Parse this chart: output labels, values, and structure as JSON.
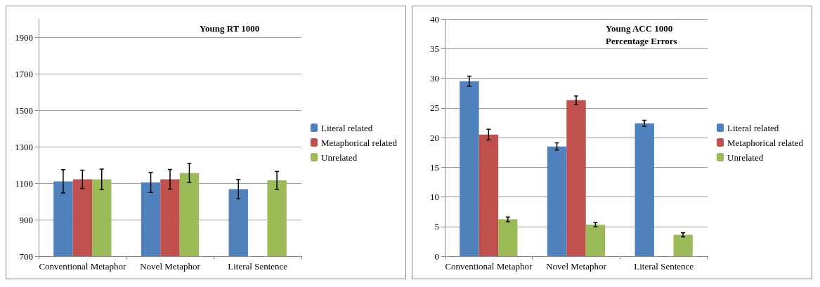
{
  "chart_data": [
    {
      "type": "bar",
      "title": "Young RT 1000",
      "categories": [
        "Conventional Metaphor",
        "Novel Metaphor",
        "Literal Sentence"
      ],
      "ylim": [
        700,
        2000
      ],
      "yticks": [
        700,
        900,
        1100,
        1300,
        1500,
        1700,
        1900
      ],
      "grid": "y",
      "legend": "right",
      "series": [
        {
          "name": "Literal related",
          "color": "#4f81bd",
          "values": [
            1110,
            1104,
            1067
          ],
          "errors": [
            64,
            55,
            53
          ]
        },
        {
          "name": "Metaphorical related",
          "color": "#c0504d",
          "values": [
            1121,
            1121,
            null
          ],
          "errors": [
            50,
            54,
            null
          ]
        },
        {
          "name": "Unrelated",
          "color": "#9bbb59",
          "values": [
            1121,
            1156,
            1115
          ],
          "errors": [
            56,
            53,
            49
          ]
        }
      ]
    },
    {
      "type": "bar",
      "title": "Young ACC 1000",
      "subtitle": "Percentage Errors",
      "categories": [
        "Conventional Metaphor",
        "Novel Metaphor",
        "Literal Sentence"
      ],
      "ylim": [
        0,
        40
      ],
      "yticks": [
        0,
        5,
        10,
        15,
        20,
        25,
        30,
        35,
        40
      ],
      "grid": "y",
      "legend": "right",
      "series": [
        {
          "name": "Literal related",
          "color": "#4f81bd",
          "values": [
            29.5,
            18.5,
            22.4
          ],
          "errors": [
            0.85,
            0.6,
            0.5
          ]
        },
        {
          "name": "Metaphorical related",
          "color": "#c0504d",
          "values": [
            20.5,
            26.3,
            null
          ],
          "errors": [
            0.9,
            0.7,
            null
          ]
        },
        {
          "name": "Unrelated",
          "color": "#9bbb59",
          "values": [
            6.2,
            5.3,
            3.6
          ],
          "errors": [
            0.4,
            0.35,
            0.35
          ]
        }
      ]
    }
  ]
}
